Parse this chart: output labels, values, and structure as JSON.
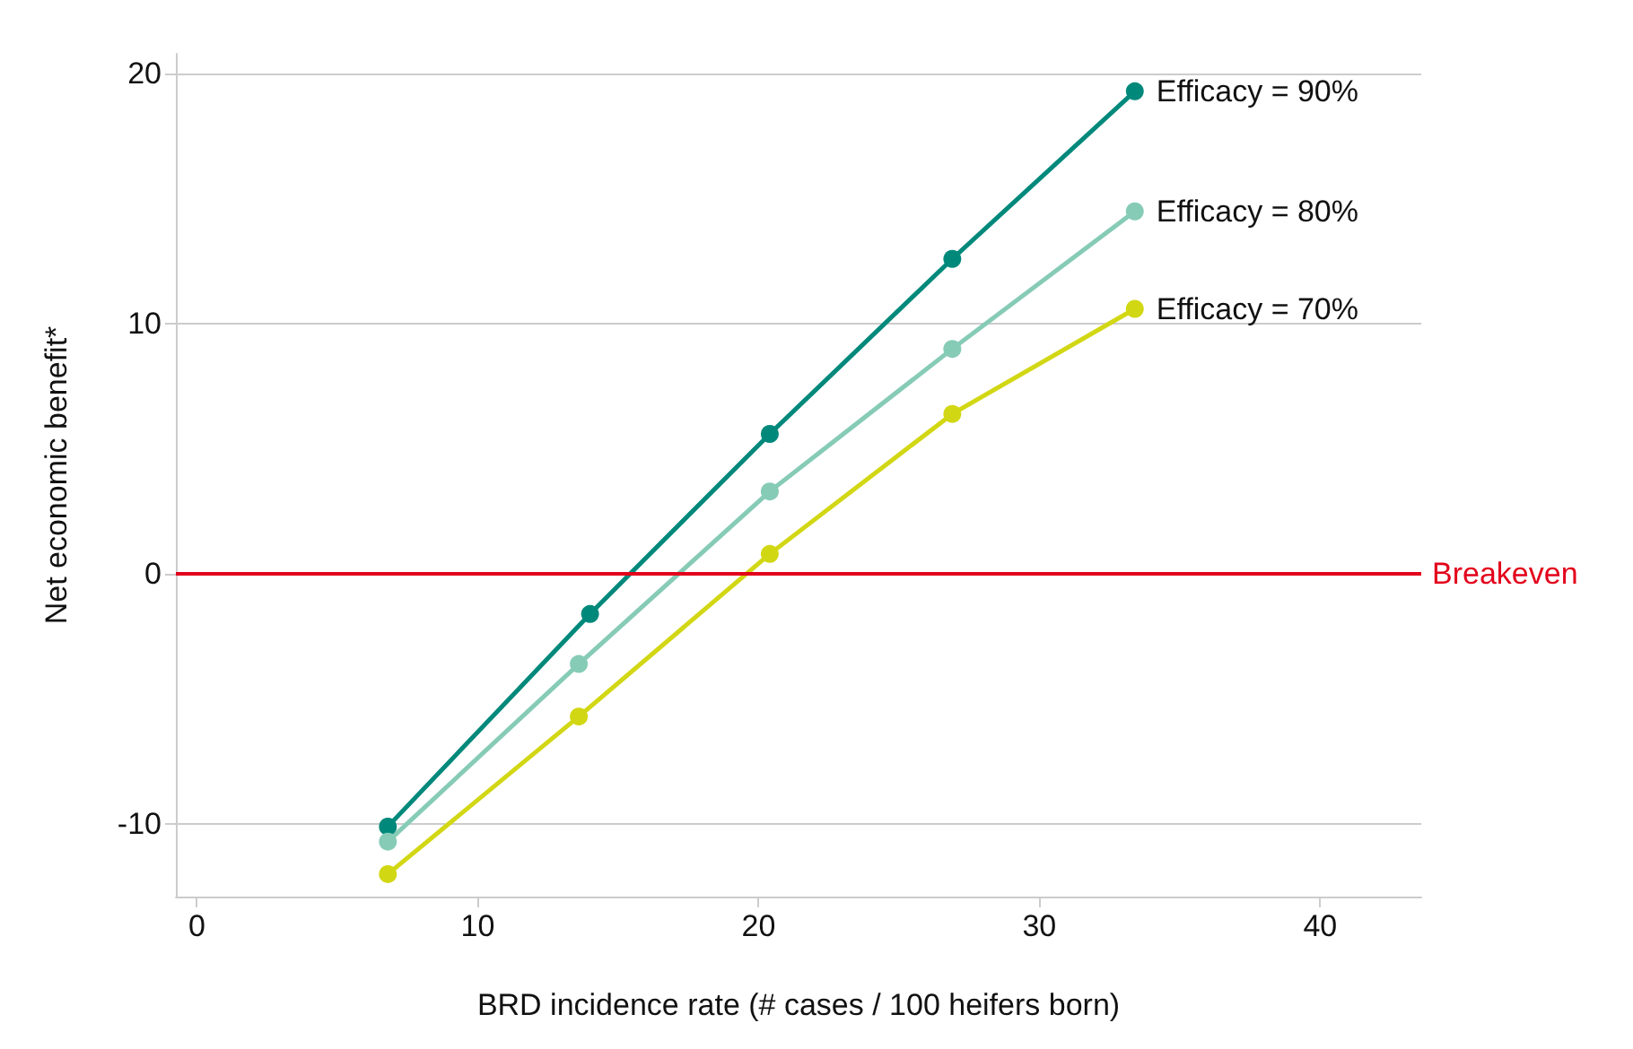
{
  "chart_data": {
    "type": "line",
    "xlabel": "BRD incidence rate (# cases / 100 heifers born)",
    "ylabel": "Net economic benefit*",
    "xlim": [
      -0.75,
      43.6
    ],
    "xticks": [
      0,
      10,
      20,
      30,
      40
    ],
    "ylim": [
      -12.9,
      20.8
    ],
    "yticks": [
      -10,
      0,
      10,
      20
    ],
    "grid": "y",
    "marker": "circle",
    "line_style": "solid",
    "series": [
      {
        "name": "Efficacy = 90%",
        "color": "#00897b",
        "x": [
          6.8,
          14.0,
          20.4,
          26.9,
          33.4
        ],
        "values": [
          -10.1,
          -1.6,
          5.6,
          12.6,
          19.3
        ]
      },
      {
        "name": "Efficacy = 80%",
        "color": "#86cbb6",
        "x": [
          6.8,
          13.6,
          20.4,
          26.9,
          33.4
        ],
        "values": [
          -10.7,
          -3.6,
          3.3,
          9.0,
          14.5
        ]
      },
      {
        "name": "Efficacy = 70%",
        "color": "#d2d714",
        "x": [
          6.8,
          13.6,
          20.4,
          26.9,
          33.4
        ],
        "values": [
          -12.0,
          -5.7,
          0.8,
          6.4,
          10.6
        ]
      }
    ],
    "ref_lines": [
      {
        "axis": "y",
        "value": 0,
        "label": "Breakeven",
        "color": "#e3001b",
        "line_style": "solid"
      }
    ]
  }
}
